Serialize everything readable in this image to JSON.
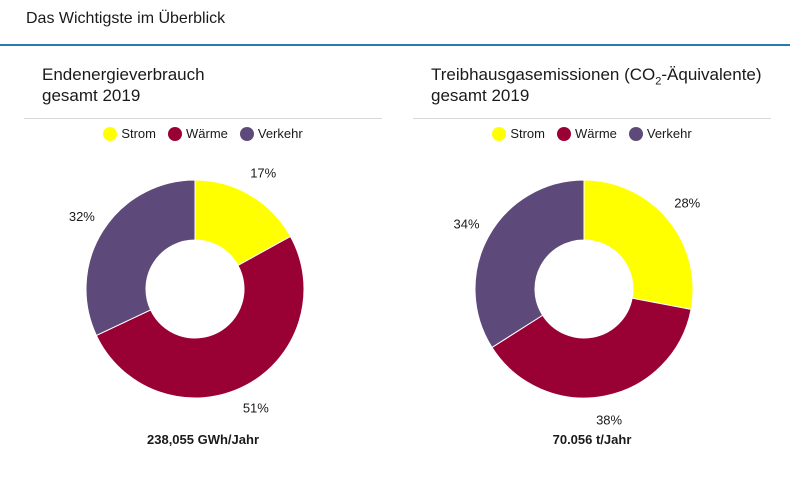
{
  "header": {
    "title": "Das Wichtigste im Überblick"
  },
  "colors": {
    "strom": "#ffff00",
    "waerme": "#990033",
    "verkehr": "#5e4a7a",
    "header_rule": "#2a7ab0"
  },
  "chart_data": [
    {
      "type": "pie",
      "donut": true,
      "title_line1": "Endenergieverbrauch",
      "title_line2": "gesamt 2019",
      "categories": [
        "Strom",
        "Wärme",
        "Verkehr"
      ],
      "values": [
        17,
        51,
        32
      ],
      "labels": [
        "17%",
        "51%",
        "32%"
      ],
      "legend": "top-center",
      "total": "238,055 GWh/Jahr"
    },
    {
      "type": "pie",
      "donut": true,
      "title_pre": "Treibhausgasemissionen (CO",
      "title_sub": "2",
      "title_post": "-Äquivalente)",
      "title_line2": "gesamt 2019",
      "categories": [
        "Strom",
        "Wärme",
        "Verkehr"
      ],
      "values": [
        28,
        38,
        34
      ],
      "labels": [
        "28%",
        "38%",
        "34%"
      ],
      "legend": "top-center",
      "total": "70.056 t/Jahr"
    }
  ]
}
